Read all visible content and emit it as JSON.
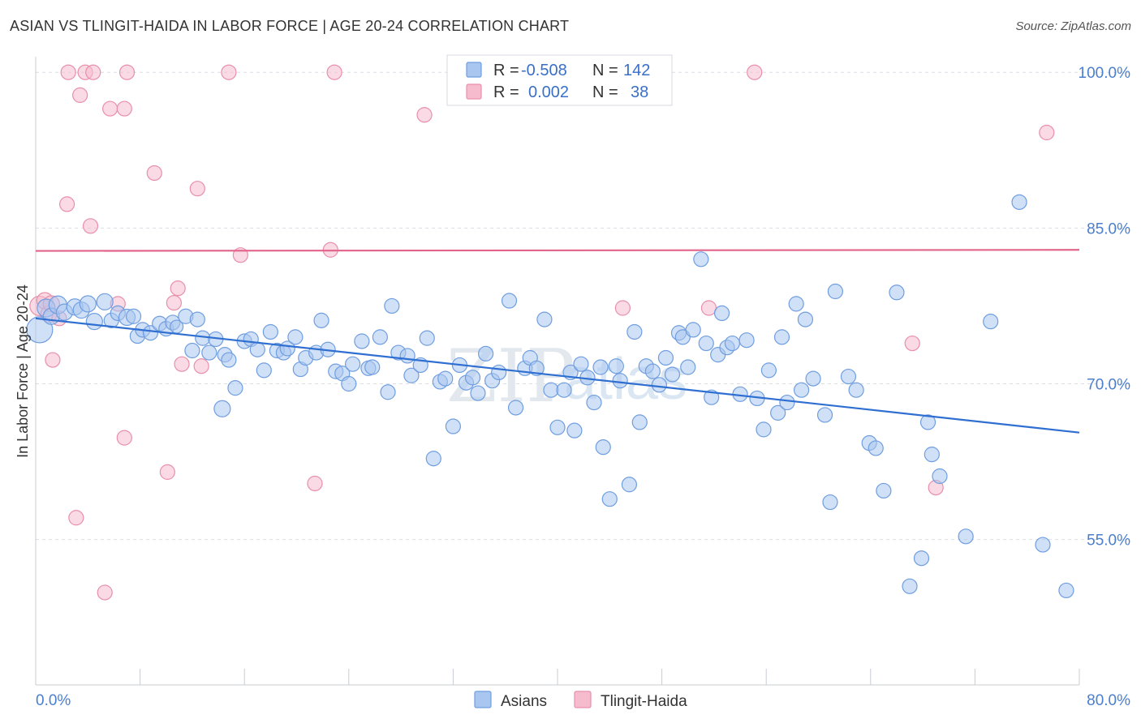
{
  "title": "ASIAN VS TLINGIT-HAIDA IN LABOR FORCE | AGE 20-24 CORRELATION CHART",
  "source": "Source: ZipAtlas.com",
  "watermark": {
    "zip": "ZIP",
    "atlas": "atlas"
  },
  "colors": {
    "asian_fill": "#a9c6f0",
    "asian_stroke": "#6f9ee0",
    "asian_line": "#2f6fd1",
    "tlingit_fill": "#f6bccd",
    "tlingit_stroke": "#e98fab",
    "tlingit_line": "#e2648b",
    "grid": "#d9dde3",
    "tick_text": "#4a7fd0"
  },
  "chart_data": {
    "type": "scatter",
    "ylabel": "In Labor Force | Age 20-24",
    "xlim": [
      0,
      80
    ],
    "ylim": [
      41,
      101.5
    ],
    "x_ticks": [
      {
        "v": 0,
        "label": "0.0%"
      },
      {
        "v": 80,
        "label": "80.0%"
      }
    ],
    "x_minor_ticks": [
      0,
      8,
      16,
      24,
      32,
      40,
      48,
      56,
      64,
      72,
      80
    ],
    "y_ticks": [
      {
        "v": 100,
        "label": "100.0%"
      },
      {
        "v": 85,
        "label": "85.0%"
      },
      {
        "v": 70,
        "label": "70.0%"
      },
      {
        "v": 55,
        "label": "55.0%"
      }
    ],
    "legend": {
      "rows": [
        {
          "r_label": "R =",
          "r_value": "-0.508",
          "n_label": "N =",
          "n_value": "142"
        },
        {
          "r_label": "R =",
          "r_value": "0.002",
          "n_label": "N =",
          "n_value": "38"
        }
      ]
    },
    "series": [
      {
        "name": "Asians",
        "trend": {
          "x0": 0,
          "y0": 76.3,
          "x1": 80,
          "y1": 65.3
        },
        "points": [
          [
            0.3,
            75.2,
            16
          ],
          [
            0.8,
            77.3,
            11
          ],
          [
            1.2,
            76.5,
            10
          ],
          [
            1.7,
            77.6,
            11
          ],
          [
            2.2,
            76.9,
            10
          ],
          [
            3.0,
            77.4,
            10
          ],
          [
            3.5,
            77.1,
            10
          ],
          [
            4.0,
            77.7,
            10
          ],
          [
            4.5,
            76.0,
            10
          ],
          [
            5.3,
            77.9,
            10
          ],
          [
            5.8,
            76.1,
            9
          ],
          [
            6.3,
            76.8,
            9
          ],
          [
            7.0,
            76.4,
            10
          ],
          [
            7.5,
            76.5,
            9
          ],
          [
            7.8,
            74.6,
            9
          ],
          [
            8.2,
            75.2,
            9
          ],
          [
            8.8,
            74.9,
            9
          ],
          [
            9.5,
            75.8,
            9
          ],
          [
            10.0,
            75.3,
            9
          ],
          [
            10.5,
            75.9,
            9
          ],
          [
            10.8,
            75.5,
            8
          ],
          [
            11.5,
            76.5,
            9
          ],
          [
            12.0,
            73.2,
            9
          ],
          [
            12.4,
            76.2,
            9
          ],
          [
            12.8,
            74.4,
            9
          ],
          [
            13.3,
            73.0,
            9
          ],
          [
            13.8,
            74.3,
            9
          ],
          [
            14.5,
            72.8,
            9
          ],
          [
            14.8,
            72.3,
            9
          ],
          [
            15.3,
            69.6,
            9
          ],
          [
            14.3,
            67.6,
            10
          ],
          [
            16.0,
            74.1,
            9
          ],
          [
            16.5,
            74.3,
            9
          ],
          [
            17.0,
            73.3,
            9
          ],
          [
            17.5,
            71.3,
            9
          ],
          [
            18.0,
            75.0,
            9
          ],
          [
            18.5,
            73.2,
            9
          ],
          [
            19.0,
            73.0,
            9
          ],
          [
            19.3,
            73.4,
            9
          ],
          [
            19.9,
            74.5,
            9
          ],
          [
            20.3,
            71.4,
            9
          ],
          [
            20.7,
            72.5,
            9
          ],
          [
            21.5,
            73.0,
            9
          ],
          [
            21.9,
            76.1,
            9
          ],
          [
            22.4,
            73.3,
            9
          ],
          [
            23.0,
            71.2,
            9
          ],
          [
            23.5,
            71.0,
            9
          ],
          [
            24.0,
            70.0,
            9
          ],
          [
            24.3,
            71.9,
            9
          ],
          [
            25.0,
            74.1,
            9
          ],
          [
            25.5,
            71.5,
            9
          ],
          [
            25.8,
            71.6,
            9
          ],
          [
            26.4,
            74.5,
            9
          ],
          [
            27.0,
            69.2,
            9
          ],
          [
            27.3,
            77.5,
            9
          ],
          [
            27.8,
            73.0,
            9
          ],
          [
            28.5,
            72.7,
            9
          ],
          [
            28.8,
            70.8,
            9
          ],
          [
            29.5,
            71.8,
            9
          ],
          [
            30.0,
            74.4,
            9
          ],
          [
            30.5,
            62.8,
            9
          ],
          [
            31.0,
            70.2,
            9
          ],
          [
            31.4,
            70.5,
            9
          ],
          [
            32.0,
            65.9,
            9
          ],
          [
            32.5,
            71.8,
            9
          ],
          [
            33.0,
            70.1,
            9
          ],
          [
            33.5,
            70.6,
            9
          ],
          [
            33.9,
            69.1,
            9
          ],
          [
            34.5,
            72.9,
            9
          ],
          [
            35.0,
            70.3,
            9
          ],
          [
            35.5,
            71.1,
            9
          ],
          [
            36.3,
            78.0,
            9
          ],
          [
            36.8,
            67.7,
            9
          ],
          [
            37.5,
            71.5,
            9
          ],
          [
            37.9,
            72.5,
            9
          ],
          [
            38.4,
            71.5,
            9
          ],
          [
            39.0,
            76.2,
            9
          ],
          [
            39.5,
            69.4,
            9
          ],
          [
            40.0,
            65.8,
            9
          ],
          [
            40.5,
            69.4,
            9
          ],
          [
            41.0,
            71.1,
            9
          ],
          [
            41.3,
            65.5,
            9
          ],
          [
            41.8,
            71.9,
            9
          ],
          [
            42.3,
            70.6,
            9
          ],
          [
            42.8,
            68.2,
            9
          ],
          [
            43.3,
            71.6,
            9
          ],
          [
            43.5,
            63.9,
            9
          ],
          [
            44.0,
            58.9,
            9
          ],
          [
            44.5,
            71.7,
            9
          ],
          [
            44.8,
            70.3,
            9
          ],
          [
            45.5,
            60.3,
            9
          ],
          [
            45.9,
            75.0,
            9
          ],
          [
            46.3,
            66.3,
            9
          ],
          [
            46.8,
            71.7,
            9
          ],
          [
            47.3,
            71.2,
            9
          ],
          [
            47.8,
            69.9,
            9
          ],
          [
            48.3,
            72.5,
            9
          ],
          [
            48.8,
            70.9,
            9
          ],
          [
            49.3,
            74.9,
            9
          ],
          [
            49.6,
            74.5,
            9
          ],
          [
            50.0,
            71.6,
            9
          ],
          [
            50.4,
            75.2,
            9
          ],
          [
            51.0,
            82.0,
            9
          ],
          [
            51.4,
            73.9,
            9
          ],
          [
            51.8,
            68.7,
            9
          ],
          [
            52.3,
            72.8,
            9
          ],
          [
            52.6,
            76.8,
            9
          ],
          [
            53.0,
            73.5,
            9
          ],
          [
            53.4,
            73.9,
            9
          ],
          [
            54.0,
            69.0,
            9
          ],
          [
            54.5,
            74.2,
            9
          ],
          [
            55.3,
            68.6,
            9
          ],
          [
            55.8,
            65.6,
            9
          ],
          [
            56.2,
            71.3,
            9
          ],
          [
            56.9,
            67.2,
            9
          ],
          [
            57.2,
            74.5,
            9
          ],
          [
            57.6,
            68.2,
            9
          ],
          [
            58.3,
            77.7,
            9
          ],
          [
            58.7,
            69.4,
            9
          ],
          [
            59.0,
            76.2,
            9
          ],
          [
            59.6,
            70.5,
            9
          ],
          [
            60.5,
            67.0,
            9
          ],
          [
            60.9,
            58.6,
            9
          ],
          [
            61.3,
            78.9,
            9
          ],
          [
            62.3,
            70.7,
            9
          ],
          [
            62.9,
            69.4,
            9
          ],
          [
            63.9,
            64.3,
            9
          ],
          [
            64.4,
            63.8,
            9
          ],
          [
            65.0,
            59.7,
            9
          ],
          [
            66.0,
            78.8,
            9
          ],
          [
            67.0,
            50.5,
            9
          ],
          [
            67.9,
            53.2,
            9
          ],
          [
            68.4,
            66.3,
            9
          ],
          [
            68.7,
            63.2,
            9
          ],
          [
            69.3,
            61.1,
            9
          ],
          [
            71.3,
            55.3,
            9
          ],
          [
            73.2,
            76.0,
            9
          ],
          [
            75.4,
            87.5,
            9
          ],
          [
            77.2,
            54.5,
            9
          ],
          [
            79.0,
            50.1,
            9
          ]
        ]
      },
      {
        "name": "Tlingit-Haida",
        "trend": {
          "x0": 0,
          "y0": 82.8,
          "x1": 80,
          "y1": 82.9
        },
        "points": [
          [
            0.3,
            77.5,
            12
          ],
          [
            0.7,
            78.0,
            10
          ],
          [
            1.0,
            76.7,
            10
          ],
          [
            1.2,
            77.7,
            10
          ],
          [
            1.3,
            72.3,
            9
          ],
          [
            1.8,
            76.3,
            9
          ],
          [
            2.4,
            87.3,
            9
          ],
          [
            2.5,
            100.0,
            9
          ],
          [
            3.1,
            57.1,
            9
          ],
          [
            3.4,
            97.8,
            9
          ],
          [
            3.8,
            100.0,
            9
          ],
          [
            4.2,
            85.2,
            9
          ],
          [
            4.4,
            100.0,
            9
          ],
          [
            5.3,
            49.9,
            9
          ],
          [
            5.7,
            96.5,
            9
          ],
          [
            6.3,
            77.7,
            9
          ],
          [
            6.8,
            96.5,
            9
          ],
          [
            6.8,
            64.8,
            9
          ],
          [
            7.0,
            100.0,
            9
          ],
          [
            9.1,
            90.3,
            9
          ],
          [
            10.1,
            61.5,
            9
          ],
          [
            10.6,
            77.8,
            9
          ],
          [
            10.9,
            79.2,
            9
          ],
          [
            11.2,
            71.9,
            9
          ],
          [
            12.4,
            88.8,
            9
          ],
          [
            12.7,
            71.7,
            9
          ],
          [
            14.8,
            100.0,
            9
          ],
          [
            15.7,
            82.4,
            9
          ],
          [
            21.4,
            60.4,
            9
          ],
          [
            22.6,
            82.9,
            9
          ],
          [
            22.9,
            100.0,
            9
          ],
          [
            29.8,
            95.9,
            9
          ],
          [
            45.0,
            77.3,
            9
          ],
          [
            51.6,
            77.3,
            9
          ],
          [
            55.1,
            100.0,
            9
          ],
          [
            67.2,
            73.9,
            9
          ],
          [
            69.0,
            60.0,
            9
          ],
          [
            77.5,
            94.2,
            9
          ]
        ]
      }
    ]
  }
}
